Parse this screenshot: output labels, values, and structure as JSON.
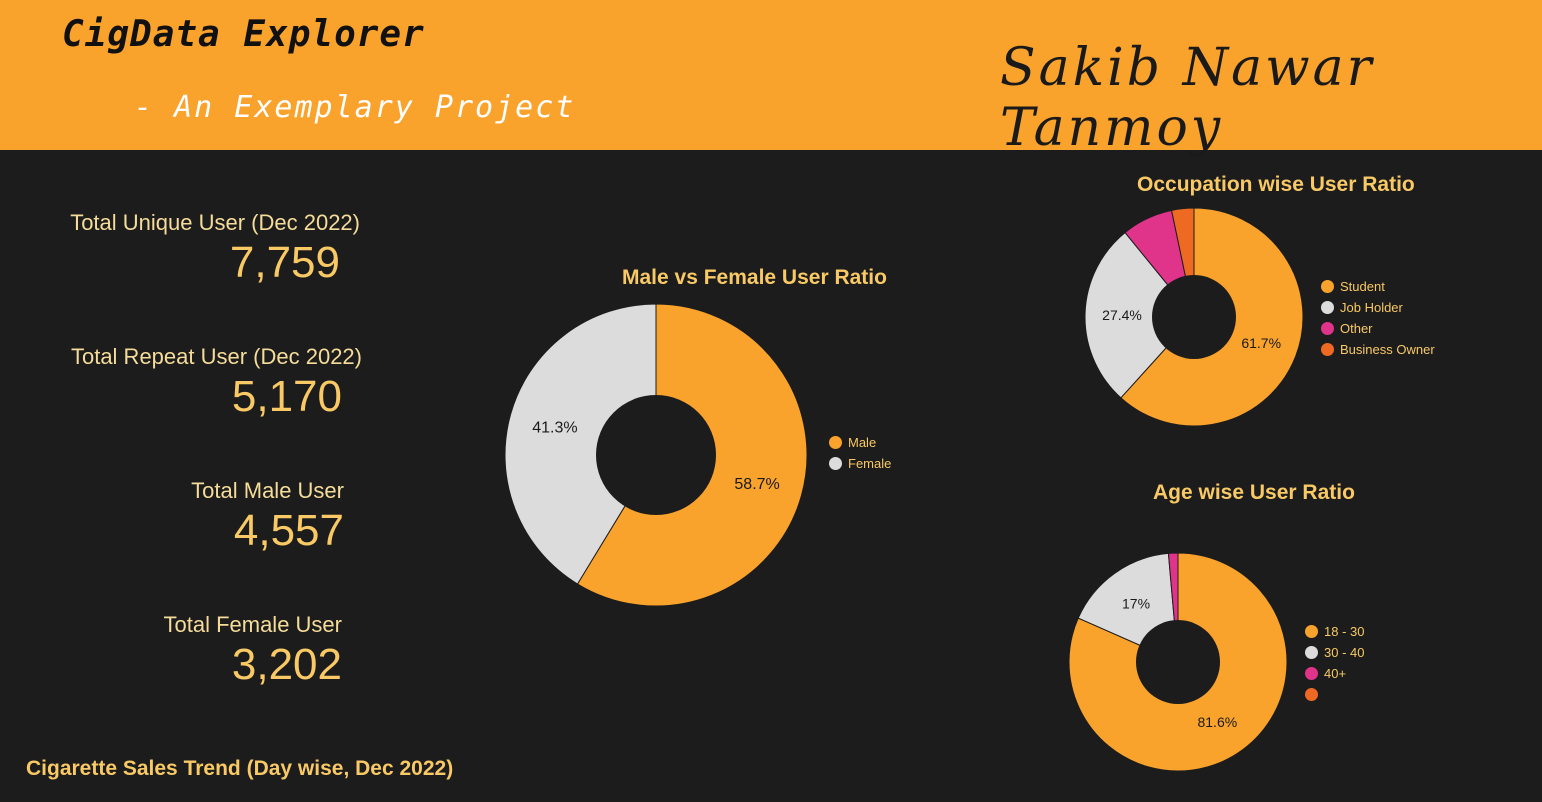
{
  "header": {
    "title": "CigData Explorer",
    "subtitle": "- An Exemplary Project",
    "author": "Sakib Nawar Tanmoy",
    "bg_color": "#f9a22c"
  },
  "kpis": [
    {
      "label": "Total Unique User (Dec 2022)",
      "value": "7,759"
    },
    {
      "label": "Total Repeat User (Dec 2022)",
      "value": "5,170"
    },
    {
      "label": "Total Male User",
      "value": "4,557"
    },
    {
      "label": "Total Female User",
      "value": "3,202"
    }
  ],
  "trend_title": "Cigarette Sales Trend (Day wise, Dec 2022)",
  "colors": {
    "orange": "#f9a22c",
    "light_gray": "#dcdcdc",
    "pink": "#e0338a",
    "dark_orange": "#ee6a23",
    "text_accent": "#f8c964"
  },
  "chart_data": [
    {
      "type": "pie",
      "title": "Male vs Female User Ratio",
      "categories": [
        "Male",
        "Female"
      ],
      "values": [
        58.7,
        41.3
      ],
      "value_labels": [
        "58.7%",
        "41.3%"
      ],
      "colors": [
        "#f9a22c",
        "#dcdcdc"
      ],
      "legend": "right"
    },
    {
      "type": "pie",
      "title": "Occupation wise User Ratio",
      "categories": [
        "Student",
        "Job Holder",
        "Other",
        "Business Owner"
      ],
      "values": [
        61.7,
        27.4,
        7.6,
        3.3
      ],
      "value_labels": [
        "61.7%",
        "27.4%",
        "",
        ""
      ],
      "colors": [
        "#f9a22c",
        "#dcdcdc",
        "#e0338a",
        "#ee6a23"
      ],
      "legend": "right"
    },
    {
      "type": "pie",
      "title": "Age wise User Ratio",
      "categories": [
        "18 - 30",
        "30 - 40",
        "40+",
        ""
      ],
      "values": [
        81.6,
        17,
        1.4,
        0
      ],
      "value_labels": [
        "81.6%",
        "17%",
        "",
        ""
      ],
      "colors": [
        "#f9a22c",
        "#dcdcdc",
        "#e0338a",
        "#ee6a23"
      ],
      "legend": "right"
    }
  ]
}
